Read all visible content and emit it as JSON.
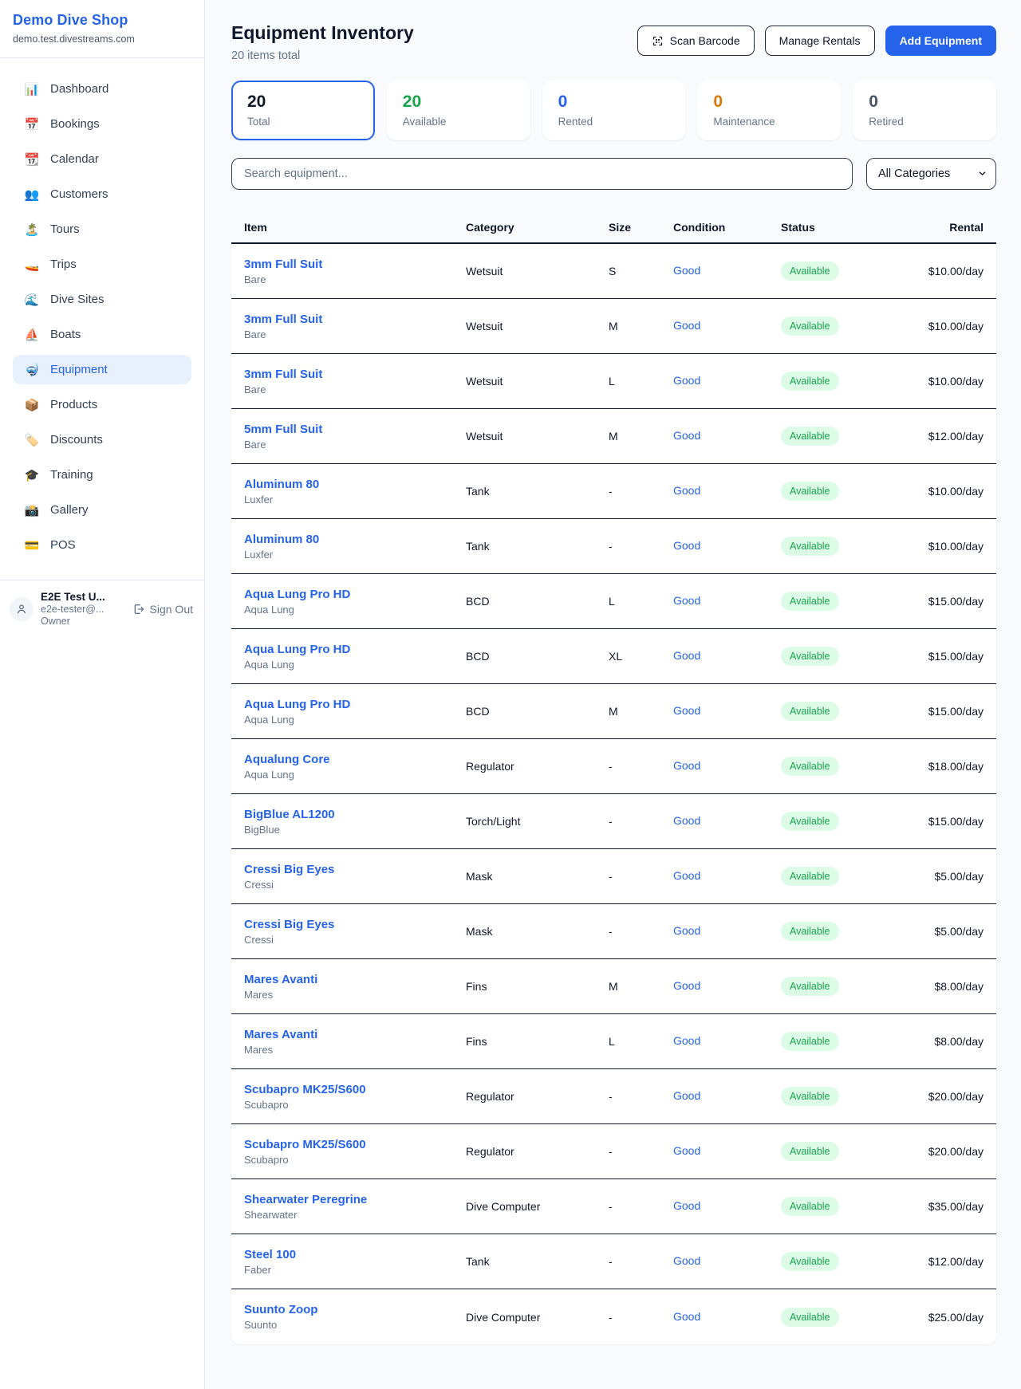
{
  "sidebar": {
    "title": "Demo Dive Shop",
    "subdomain": "demo.test.divestreams.com",
    "items": [
      {
        "name": "dashboard",
        "icon": "📊",
        "label": "Dashboard",
        "active": false
      },
      {
        "name": "bookings",
        "icon": "📅",
        "label": "Bookings",
        "active": false
      },
      {
        "name": "calendar",
        "icon": "📆",
        "label": "Calendar",
        "active": false
      },
      {
        "name": "customers",
        "icon": "👥",
        "label": "Customers",
        "active": false
      },
      {
        "name": "tours",
        "icon": "🏝️",
        "label": "Tours",
        "active": false
      },
      {
        "name": "trips",
        "icon": "🚤",
        "label": "Trips",
        "active": false
      },
      {
        "name": "dive-sites",
        "icon": "🌊",
        "label": "Dive Sites",
        "active": false
      },
      {
        "name": "boats",
        "icon": "⛵",
        "label": "Boats",
        "active": false
      },
      {
        "name": "equipment",
        "icon": "🤿",
        "label": "Equipment",
        "active": true
      },
      {
        "name": "products",
        "icon": "📦",
        "label": "Products",
        "active": false
      },
      {
        "name": "discounts",
        "icon": "🏷️",
        "label": "Discounts",
        "active": false
      },
      {
        "name": "training",
        "icon": "🎓",
        "label": "Training",
        "active": false
      },
      {
        "name": "gallery",
        "icon": "📸",
        "label": "Gallery",
        "active": false
      },
      {
        "name": "pos",
        "icon": "💳",
        "label": "POS",
        "active": false
      }
    ],
    "user": {
      "name": "E2E Test U...",
      "email": "e2e-tester@...",
      "role": "Owner",
      "sign_out_label": "Sign Out"
    }
  },
  "header": {
    "title": "Equipment Inventory",
    "subtitle": "20 items total",
    "scan_barcode_label": "Scan Barcode",
    "manage_rentals_label": "Manage Rentals",
    "add_equipment_label": "Add Equipment"
  },
  "stats": [
    {
      "value": "20",
      "label": "Total",
      "color": "#0f172a",
      "selected": true
    },
    {
      "value": "20",
      "label": "Available",
      "color": "#16a34a",
      "selected": false
    },
    {
      "value": "0",
      "label": "Rented",
      "color": "#2563eb",
      "selected": false
    },
    {
      "value": "0",
      "label": "Maintenance",
      "color": "#d97706",
      "selected": false
    },
    {
      "value": "0",
      "label": "Retired",
      "color": "#475569",
      "selected": false
    }
  ],
  "filters": {
    "search_placeholder": "Search equipment...",
    "category_selected": "All Categories"
  },
  "table": {
    "columns": [
      "Item",
      "Category",
      "Size",
      "Condition",
      "Status",
      "Rental"
    ],
    "rows": [
      {
        "item": "3mm Full Suit",
        "brand": "Bare",
        "category": "Wetsuit",
        "size": "S",
        "condition": "Good",
        "status": "Available",
        "rental": "$10.00/day"
      },
      {
        "item": "3mm Full Suit",
        "brand": "Bare",
        "category": "Wetsuit",
        "size": "M",
        "condition": "Good",
        "status": "Available",
        "rental": "$10.00/day"
      },
      {
        "item": "3mm Full Suit",
        "brand": "Bare",
        "category": "Wetsuit",
        "size": "L",
        "condition": "Good",
        "status": "Available",
        "rental": "$10.00/day"
      },
      {
        "item": "5mm Full Suit",
        "brand": "Bare",
        "category": "Wetsuit",
        "size": "M",
        "condition": "Good",
        "status": "Available",
        "rental": "$12.00/day"
      },
      {
        "item": "Aluminum 80",
        "brand": "Luxfer",
        "category": "Tank",
        "size": "-",
        "condition": "Good",
        "status": "Available",
        "rental": "$10.00/day"
      },
      {
        "item": "Aluminum 80",
        "brand": "Luxfer",
        "category": "Tank",
        "size": "-",
        "condition": "Good",
        "status": "Available",
        "rental": "$10.00/day"
      },
      {
        "item": "Aqua Lung Pro HD",
        "brand": "Aqua Lung",
        "category": "BCD",
        "size": "L",
        "condition": "Good",
        "status": "Available",
        "rental": "$15.00/day"
      },
      {
        "item": "Aqua Lung Pro HD",
        "brand": "Aqua Lung",
        "category": "BCD",
        "size": "XL",
        "condition": "Good",
        "status": "Available",
        "rental": "$15.00/day"
      },
      {
        "item": "Aqua Lung Pro HD",
        "brand": "Aqua Lung",
        "category": "BCD",
        "size": "M",
        "condition": "Good",
        "status": "Available",
        "rental": "$15.00/day"
      },
      {
        "item": "Aqualung Core",
        "brand": "Aqua Lung",
        "category": "Regulator",
        "size": "-",
        "condition": "Good",
        "status": "Available",
        "rental": "$18.00/day"
      },
      {
        "item": "BigBlue AL1200",
        "brand": "BigBlue",
        "category": "Torch/Light",
        "size": "-",
        "condition": "Good",
        "status": "Available",
        "rental": "$15.00/day"
      },
      {
        "item": "Cressi Big Eyes",
        "brand": "Cressi",
        "category": "Mask",
        "size": "-",
        "condition": "Good",
        "status": "Available",
        "rental": "$5.00/day"
      },
      {
        "item": "Cressi Big Eyes",
        "brand": "Cressi",
        "category": "Mask",
        "size": "-",
        "condition": "Good",
        "status": "Available",
        "rental": "$5.00/day"
      },
      {
        "item": "Mares Avanti",
        "brand": "Mares",
        "category": "Fins",
        "size": "M",
        "condition": "Good",
        "status": "Available",
        "rental": "$8.00/day"
      },
      {
        "item": "Mares Avanti",
        "brand": "Mares",
        "category": "Fins",
        "size": "L",
        "condition": "Good",
        "status": "Available",
        "rental": "$8.00/day"
      },
      {
        "item": "Scubapro MK25/S600",
        "brand": "Scubapro",
        "category": "Regulator",
        "size": "-",
        "condition": "Good",
        "status": "Available",
        "rental": "$20.00/day"
      },
      {
        "item": "Scubapro MK25/S600",
        "brand": "Scubapro",
        "category": "Regulator",
        "size": "-",
        "condition": "Good",
        "status": "Available",
        "rental": "$20.00/day"
      },
      {
        "item": "Shearwater Peregrine",
        "brand": "Shearwater",
        "category": "Dive Computer",
        "size": "-",
        "condition": "Good",
        "status": "Available",
        "rental": "$35.00/day"
      },
      {
        "item": "Steel 100",
        "brand": "Faber",
        "category": "Tank",
        "size": "-",
        "condition": "Good",
        "status": "Available",
        "rental": "$12.00/day"
      },
      {
        "item": "Suunto Zoop",
        "brand": "Suunto",
        "category": "Dive Computer",
        "size": "-",
        "condition": "Good",
        "status": "Available",
        "rental": "$25.00/day"
      }
    ]
  },
  "colors": {
    "accent_blue": "#2563eb",
    "available_green": "#16a34a",
    "maintenance_orange": "#d97706",
    "retired_gray": "#475569",
    "badge_bg": "#dcfce7",
    "row_divider": "#0f172a",
    "page_bg": "#f8fafc"
  }
}
